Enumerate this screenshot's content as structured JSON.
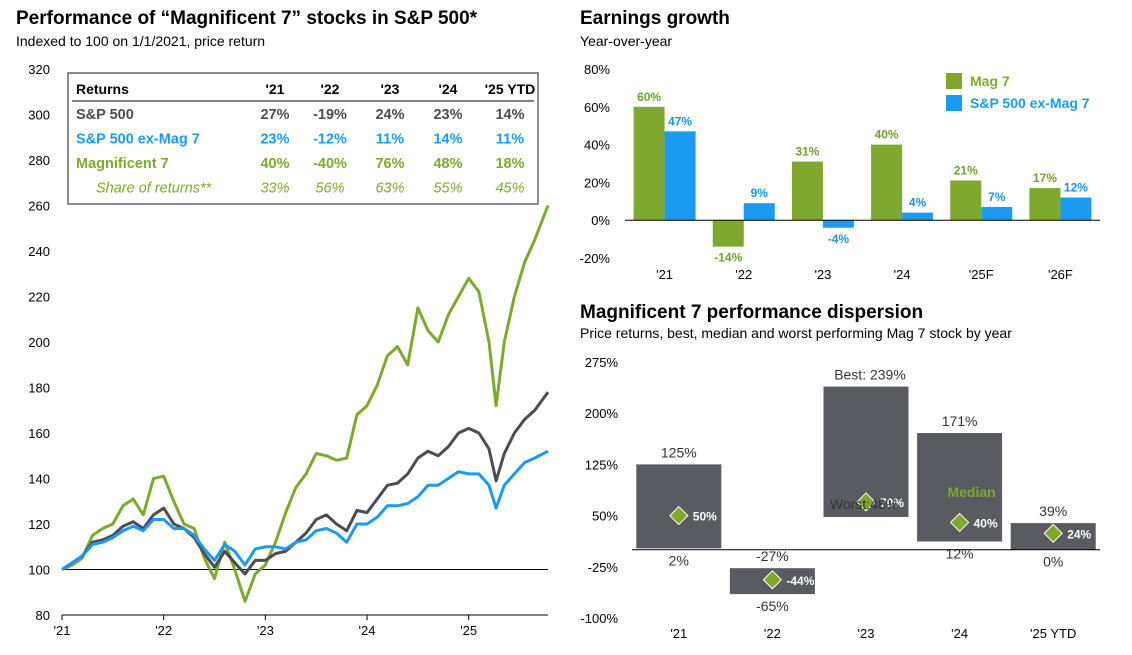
{
  "colors": {
    "sp500": "#4a4d52",
    "ex_mag7": "#1a9af0",
    "mag7": "#7fa82e",
    "dispersion_bar": "#595b60",
    "diamond": "#7fa82e",
    "axis": "#000000"
  },
  "left_chart": {
    "title": "Performance of “Magnificent 7” stocks in S&P 500*",
    "subtitle": "Indexed to 100 on 1/1/2021, price return"
  },
  "returns_table": {
    "header": [
      "Returns",
      "'21",
      "'22",
      "'23",
      "'24",
      "'25 YTD"
    ],
    "rows": [
      {
        "label": "S&P 500",
        "values": [
          "27%",
          "-19%",
          "24%",
          "23%",
          "14%"
        ],
        "style": "sp500"
      },
      {
        "label": "S&P 500 ex-Mag 7",
        "values": [
          "23%",
          "-12%",
          "11%",
          "14%",
          "11%"
        ],
        "style": "ex_mag7"
      },
      {
        "label": "Magnificent 7",
        "values": [
          "40%",
          "-40%",
          "76%",
          "48%",
          "18%"
        ],
        "style": "mag7"
      },
      {
        "label": "Share of returns**",
        "values": [
          "33%",
          "56%",
          "63%",
          "55%",
          "45%"
        ],
        "style": "share"
      }
    ]
  },
  "earnings_chart": {
    "title": "Earnings growth",
    "subtitle": "Year-over-year"
  },
  "dispersion_chart": {
    "title": "Magnificent 7 performance dispersion",
    "subtitle": "Price returns, best, median and worst performing Mag 7 stock by year",
    "best_label": "Best: 239%",
    "worst_label": "Worst:48%",
    "median_label": "Median"
  },
  "chart_data": [
    {
      "type": "line",
      "x_tick_labels": [
        "'21",
        "'22",
        "'23",
        "'24",
        "'25"
      ],
      "x_ticks": [
        2021.0,
        2022.0,
        2023.0,
        2024.0,
        2025.0
      ],
      "xlim": [
        2021.0,
        2025.78
      ],
      "ylim": [
        80,
        320
      ],
      "y_ticks": [
        80,
        100,
        120,
        140,
        160,
        180,
        200,
        220,
        240,
        260,
        280,
        300,
        320
      ],
      "x": [
        2021.0,
        2021.1,
        2021.2,
        2021.3,
        2021.4,
        2021.5,
        2021.6,
        2021.7,
        2021.8,
        2021.9,
        2022.0,
        2022.1,
        2022.2,
        2022.3,
        2022.4,
        2022.5,
        2022.6,
        2022.7,
        2022.8,
        2022.9,
        2023.0,
        2023.1,
        2023.2,
        2023.3,
        2023.4,
        2023.5,
        2023.6,
        2023.7,
        2023.8,
        2023.9,
        2024.0,
        2024.1,
        2024.2,
        2024.3,
        2024.4,
        2024.5,
        2024.6,
        2024.7,
        2024.8,
        2024.9,
        2025.0,
        2025.1,
        2025.2,
        2025.27,
        2025.35,
        2025.45,
        2025.55,
        2025.65,
        2025.78
      ],
      "series": [
        {
          "name": "S&P 500",
          "color_key": "sp500",
          "values": [
            100,
            103,
            106,
            112,
            113,
            115,
            119,
            121,
            118,
            124,
            127,
            120,
            118,
            114,
            107,
            101,
            108,
            103,
            98,
            104,
            104,
            107,
            108,
            112,
            116,
            122,
            124,
            120,
            117,
            126,
            125,
            131,
            137,
            138,
            142,
            149,
            152,
            150,
            154,
            160,
            162,
            160,
            153,
            139,
            151,
            160,
            166,
            170,
            178
          ]
        },
        {
          "name": "S&P 500 ex-Mag 7",
          "color_key": "ex_mag7",
          "values": [
            100,
            103,
            106,
            111,
            112,
            114,
            117,
            119,
            117,
            122,
            122,
            118,
            118,
            115,
            109,
            104,
            111,
            108,
            102,
            109,
            110,
            110,
            109,
            112,
            113,
            117,
            118,
            116,
            112,
            120,
            120,
            123,
            128,
            128,
            129,
            132,
            137,
            137,
            140,
            143,
            142,
            142,
            137,
            127,
            137,
            142,
            147,
            149,
            152
          ]
        },
        {
          "name": "Magnificent 7",
          "color_key": "mag7",
          "values": [
            100,
            102,
            105,
            115,
            118,
            120,
            128,
            131,
            124,
            140,
            141,
            130,
            120,
            118,
            105,
            96,
            112,
            100,
            86,
            98,
            102,
            112,
            125,
            136,
            142,
            151,
            150,
            148,
            149,
            168,
            172,
            181,
            194,
            198,
            190,
            215,
            205,
            200,
            212,
            220,
            228,
            222,
            200,
            172,
            200,
            220,
            235,
            245,
            260
          ]
        }
      ]
    },
    {
      "type": "bar",
      "categories": [
        "'21",
        "'22",
        "'23",
        "'24",
        "'25F",
        "'26F"
      ],
      "ylim": [
        -20,
        80
      ],
      "y_ticks": [
        -20,
        0,
        20,
        40,
        60,
        80
      ],
      "y_tick_labels": [
        "-20%",
        "0%",
        "20%",
        "40%",
        "60%",
        "80%"
      ],
      "legend_position": "top-right",
      "series": [
        {
          "name": "Mag 7",
          "color_key": "mag7",
          "values": [
            60,
            -14,
            31,
            40,
            21,
            17
          ],
          "labels": [
            "60%",
            "-14%",
            "31%",
            "40%",
            "21%",
            "17%"
          ]
        },
        {
          "name": "S&P 500 ex-Mag 7",
          "color_key": "ex_mag7",
          "values": [
            47,
            9,
            -4,
            4,
            7,
            12
          ],
          "labels": [
            "47%",
            "9%",
            "-4%",
            "4%",
            "7%",
            "12%"
          ]
        }
      ]
    },
    {
      "type": "bar",
      "categories": [
        "'21",
        "'22",
        "'23",
        "'24",
        "'25 YTD"
      ],
      "ylim": [
        -100,
        275
      ],
      "y_ticks": [
        -100,
        -25,
        50,
        125,
        200,
        275
      ],
      "y_tick_labels": [
        "-100%",
        "-25%",
        "50%",
        "125%",
        "200%",
        "275%"
      ],
      "best": [
        125,
        -27,
        239,
        171,
        39
      ],
      "median": [
        50,
        -44,
        70,
        40,
        24
      ],
      "worst": [
        2,
        -65,
        48,
        12,
        0
      ],
      "best_labels": [
        "125%",
        "-27%",
        "",
        "171%",
        "39%"
      ],
      "median_labels": [
        "50%",
        "-44%",
        "70%",
        "40%",
        "24%"
      ],
      "worst_labels": [
        "2%",
        "-65%",
        "",
        "12%",
        "0%"
      ]
    }
  ]
}
